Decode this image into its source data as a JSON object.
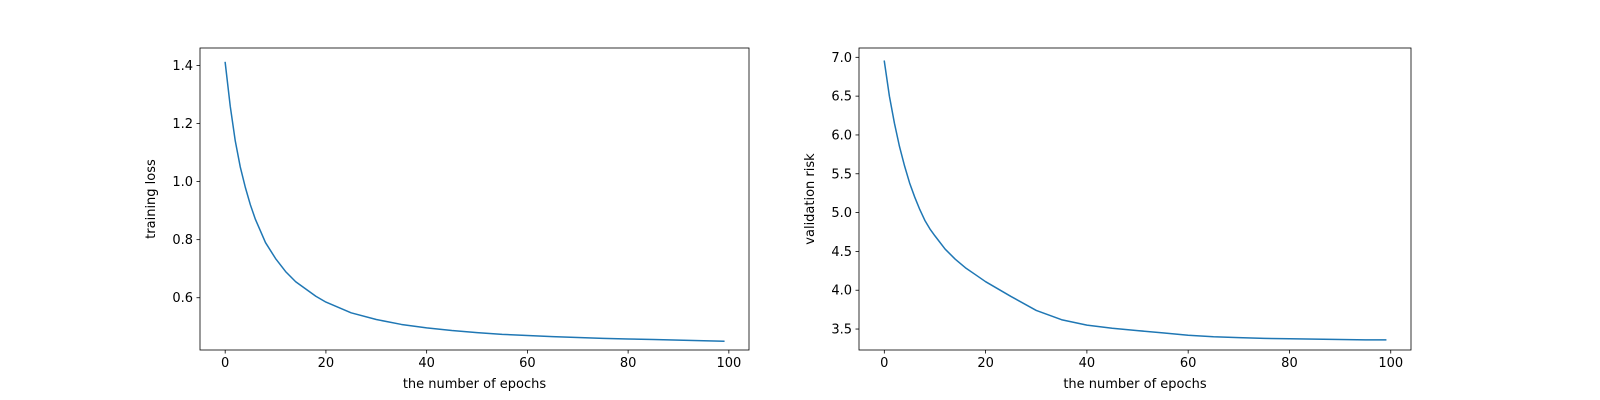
{
  "chart_data": [
    {
      "type": "line",
      "xlabel": "the number of epochs",
      "ylabel": "training loss",
      "xlim": [
        -5,
        104
      ],
      "ylim": [
        0.42,
        1.46
      ],
      "xticks": [
        0,
        20,
        40,
        60,
        80,
        100
      ],
      "xtick_labels": [
        "0",
        "20",
        "40",
        "60",
        "80",
        "100"
      ],
      "yticks": [
        0.6,
        0.8,
        1.0,
        1.2,
        1.4
      ],
      "ytick_labels": [
        "0.6",
        "0.8",
        "1.0",
        "1.2",
        "1.4"
      ],
      "grid": false,
      "line_color": "#1f77b4",
      "series": [
        {
          "x": [
            0,
            1,
            2,
            3,
            4,
            5,
            6,
            7,
            8,
            10,
            12,
            14,
            16,
            18,
            20,
            25,
            30,
            35,
            40,
            45,
            50,
            55,
            60,
            65,
            70,
            75,
            80,
            85,
            90,
            95,
            99
          ],
          "y": [
            1.41,
            1.26,
            1.14,
            1.05,
            0.98,
            0.92,
            0.87,
            0.83,
            0.79,
            0.735,
            0.69,
            0.655,
            0.63,
            0.605,
            0.585,
            0.548,
            0.525,
            0.508,
            0.496,
            0.487,
            0.48,
            0.474,
            0.47,
            0.466,
            0.463,
            0.46,
            0.458,
            0.456,
            0.454,
            0.452,
            0.45
          ]
        }
      ]
    },
    {
      "type": "line",
      "xlabel": "the number of epochs",
      "ylabel": "validation risk",
      "xlim": [
        -5,
        104
      ],
      "ylim": [
        3.23,
        7.12
      ],
      "xticks": [
        0,
        20,
        40,
        60,
        80,
        100
      ],
      "xtick_labels": [
        "0",
        "20",
        "40",
        "60",
        "80",
        "100"
      ],
      "yticks": [
        3.5,
        4.0,
        4.5,
        5.0,
        5.5,
        6.0,
        6.5,
        7.0
      ],
      "ytick_labels": [
        "3.5",
        "4.0",
        "4.5",
        "5.0",
        "5.5",
        "6.0",
        "6.5",
        "7.0"
      ],
      "grid": false,
      "line_color": "#1f77b4",
      "series": [
        {
          "x": [
            0,
            1,
            2,
            3,
            4,
            5,
            6,
            7,
            8,
            9,
            10,
            12,
            14,
            16,
            18,
            20,
            25,
            30,
            35,
            40,
            45,
            50,
            55,
            60,
            65,
            70,
            75,
            80,
            85,
            90,
            95,
            99
          ],
          "y": [
            6.95,
            6.5,
            6.15,
            5.85,
            5.6,
            5.38,
            5.2,
            5.04,
            4.9,
            4.79,
            4.7,
            4.53,
            4.4,
            4.29,
            4.2,
            4.11,
            3.92,
            3.74,
            3.62,
            3.55,
            3.51,
            3.48,
            3.45,
            3.42,
            3.4,
            3.39,
            3.38,
            3.375,
            3.37,
            3.365,
            3.36,
            3.36
          ]
        }
      ]
    }
  ]
}
